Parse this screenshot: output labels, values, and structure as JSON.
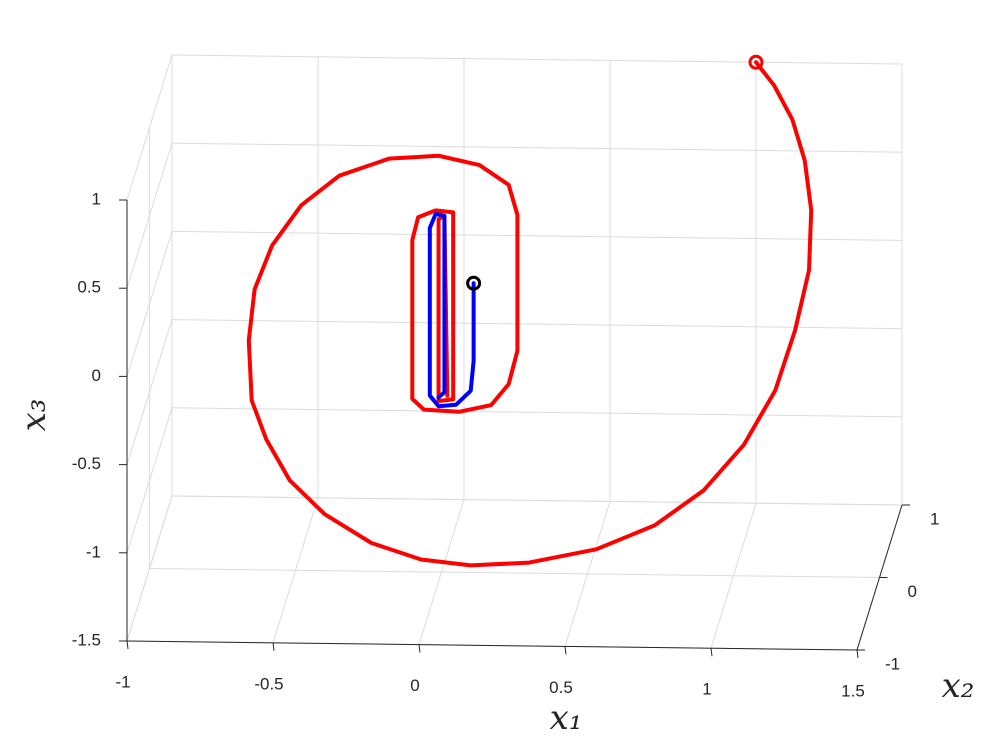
{
  "chart_data": {
    "type": "line3d",
    "xlabel": "x₁",
    "ylabel": "x₂",
    "zlabel": "x₃",
    "xlim": [
      -1,
      1.5
    ],
    "xticks": [
      -1,
      -0.5,
      0,
      0.5,
      1,
      1.5
    ],
    "ylim": [
      -1,
      1
    ],
    "yticks": [
      -1,
      0,
      1
    ],
    "zlim": [
      -1.5,
      1
    ],
    "zticks": [
      -1.5,
      -1,
      -0.5,
      0,
      0.5,
      1
    ],
    "grid": true,
    "series": [
      {
        "color": "#ff0000",
        "start_marker_color": "#ff0000",
        "x1": [
          1.0,
          1.07,
          1.14,
          1.19,
          1.22,
          1.22,
          1.18,
          1.12,
          1.02,
          0.89,
          0.73,
          0.53,
          0.3,
          0.1,
          -0.07,
          -0.24,
          -0.4,
          -0.52,
          -0.6,
          -0.65,
          -0.66,
          -0.64,
          -0.58,
          -0.48,
          -0.35,
          -0.18,
          -0.01,
          0.13,
          0.23,
          0.26,
          0.26,
          0.26,
          0.23,
          0.17,
          0.06,
          -0.06,
          -0.1,
          -0.1,
          -0.08,
          -0.02,
          0.04,
          0.04,
          -0.01,
          -0.01,
          0.01,
          0.02
        ],
        "x2": [
          1,
          0.9,
          0.8,
          0.7,
          0.6,
          0.5,
          0.4,
          0.3,
          0.2,
          0.1,
          0,
          0,
          0,
          0,
          0,
          0,
          0,
          0,
          0,
          0,
          0,
          0,
          0,
          0,
          0,
          0,
          0,
          0,
          0,
          0,
          0,
          0,
          0,
          0,
          0,
          0,
          0,
          0,
          0,
          0,
          0,
          0,
          0,
          0,
          0,
          0
        ],
        "x3": [
          1.0,
          0.91,
          0.76,
          0.57,
          0.33,
          0.03,
          -0.27,
          -0.57,
          -0.84,
          -1.06,
          -1.22,
          -1.36,
          -1.44,
          -1.46,
          -1.43,
          -1.34,
          -1.18,
          -0.99,
          -0.76,
          -0.54,
          -0.2,
          0.09,
          0.34,
          0.57,
          0.74,
          0.84,
          0.86,
          0.81,
          0.7,
          0.53,
          0.1,
          -0.24,
          -0.43,
          -0.55,
          -0.59,
          -0.58,
          -0.52,
          0.38,
          0.51,
          0.55,
          0.54,
          -0.52,
          -0.53,
          0.5,
          0.52,
          -0.5
        ]
      },
      {
        "color": "#0000ff",
        "start_marker_color": "#000000",
        "x1": [
          0.11,
          0.11,
          0.1,
          0.05,
          -0.01,
          -0.04,
          -0.04,
          -0.02,
          0.01,
          0.01,
          0.01,
          -0.01
        ],
        "x2": [
          0,
          0,
          0,
          0,
          0,
          0,
          0,
          0,
          0,
          0,
          0,
          0
        ],
        "x3": [
          0.14,
          -0.3,
          -0.47,
          -0.55,
          -0.56,
          -0.5,
          0.45,
          0.53,
          0.52,
          0.41,
          -0.48,
          -0.51
        ]
      }
    ]
  }
}
